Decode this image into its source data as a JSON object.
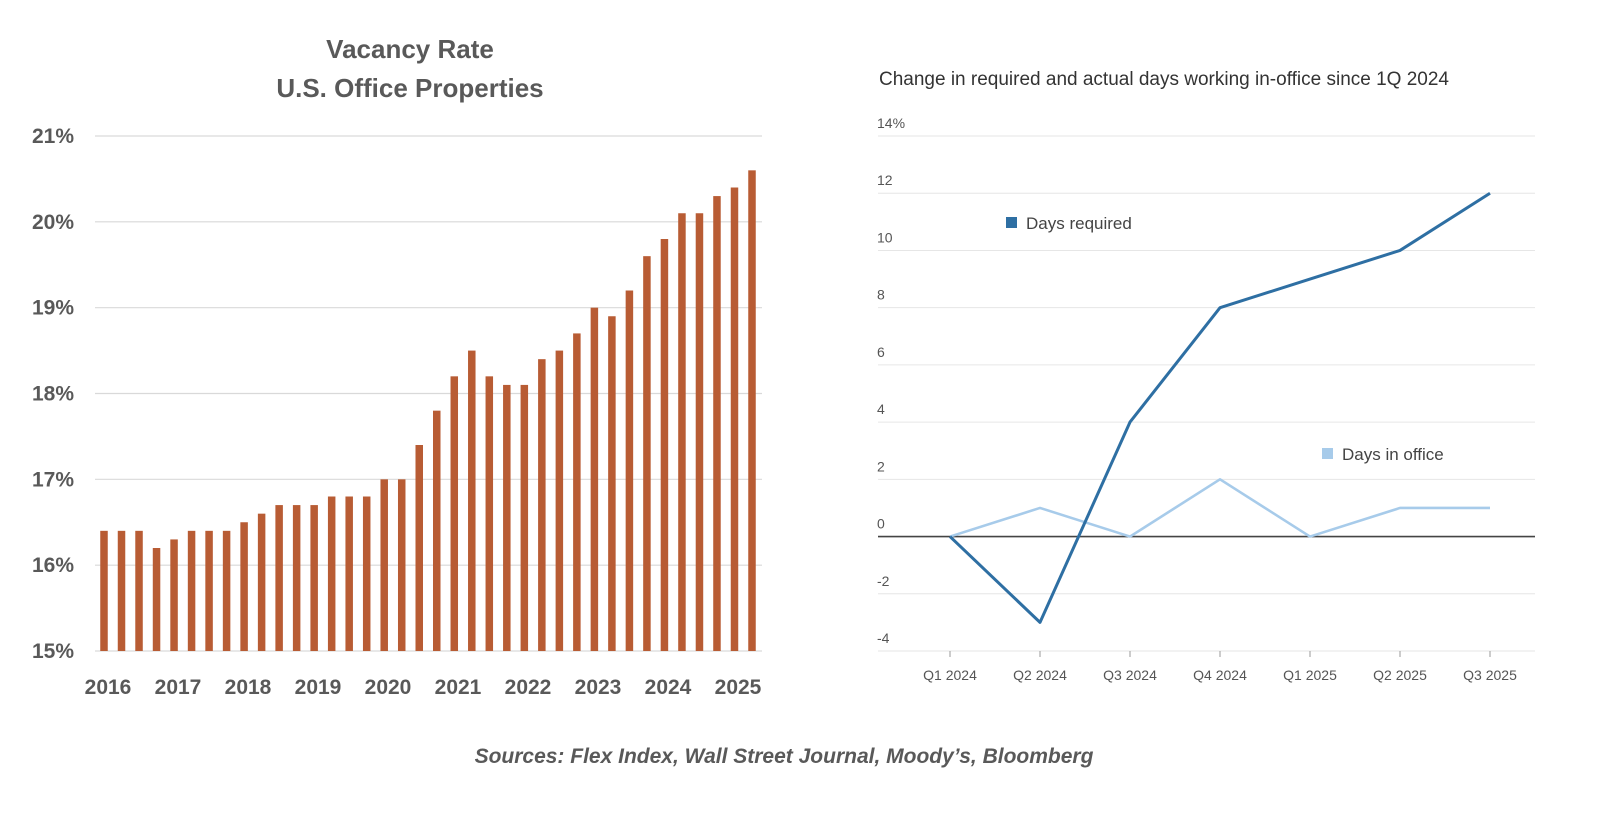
{
  "colors": {
    "bar": "#B85C34",
    "grid": "#d9d9d9",
    "days_required": "#2E6FA3",
    "days_in_office": "#A7CBEA",
    "axis_dark": "#444444"
  },
  "chart_data": [
    {
      "type": "bar",
      "title": "Vacancy Rate",
      "subtitle": "U.S. Office Properties",
      "xlabel": "",
      "ylabel": "",
      "ylim": [
        15,
        21
      ],
      "yticks": [
        15,
        16,
        17,
        18,
        19,
        20,
        21
      ],
      "ytick_labels": [
        "15%",
        "16%",
        "17%",
        "18%",
        "19%",
        "20%",
        "21%"
      ],
      "x_tick_labels": [
        "2016",
        "2017",
        "2018",
        "2019",
        "2020",
        "2021",
        "2022",
        "2023",
        "2024",
        "2025"
      ],
      "grid": true,
      "values": [
        16.4,
        16.4,
        16.4,
        16.2,
        16.3,
        16.4,
        16.4,
        16.4,
        16.5,
        16.6,
        16.7,
        16.7,
        16.7,
        16.8,
        16.8,
        16.8,
        17.0,
        17.0,
        17.4,
        17.8,
        18.2,
        18.5,
        18.2,
        18.1,
        18.1,
        18.4,
        18.5,
        18.7,
        19.0,
        18.9,
        19.2,
        19.6,
        19.8,
        20.1,
        20.1,
        20.3,
        20.4,
        20.6
      ]
    },
    {
      "type": "line",
      "title": "Change in required and actual days working in-office since 1Q 2024",
      "xlabel": "",
      "ylabel": "",
      "categories": [
        "Q1 2024",
        "Q2 2024",
        "Q3 2024",
        "Q4 2024",
        "Q1 2025",
        "Q2 2025",
        "Q3 2025"
      ],
      "ylim": [
        -4,
        14
      ],
      "yticks": [
        -4,
        -2,
        0,
        2,
        4,
        6,
        8,
        10,
        12,
        14
      ],
      "ytick_labels": [
        "-4",
        "-2",
        "0",
        "2",
        "4",
        "6",
        "8",
        "10",
        "12",
        "14%"
      ],
      "grid": true,
      "legend": "inline",
      "series": [
        {
          "name": "Days required",
          "values": [
            0,
            -3,
            4,
            8,
            9,
            10,
            12
          ]
        },
        {
          "name": "Days in office",
          "values": [
            0,
            1,
            0,
            2,
            0,
            1,
            1
          ]
        }
      ]
    }
  ],
  "source_note": "Sources: Flex Index, Wall Street Journal, Moody’s, Bloomberg"
}
